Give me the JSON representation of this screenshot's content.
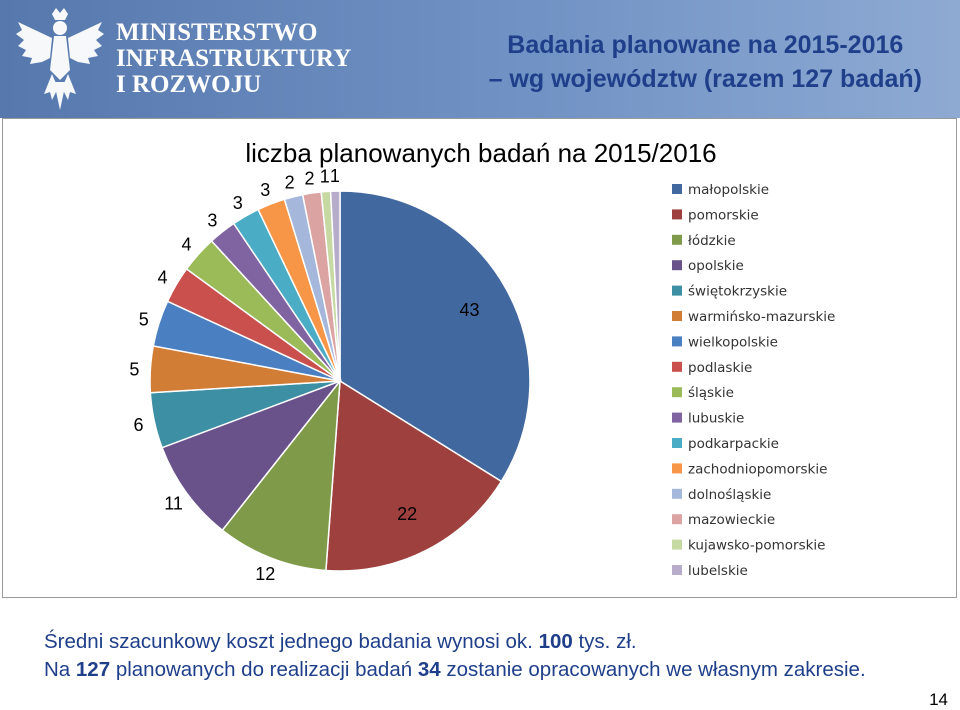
{
  "header": {
    "ministry_lines": [
      "MINISTERSTWO",
      "INFRASTRUKTURY",
      "I ROZWOJU"
    ],
    "title_line1": "Badania planowane na 2015-2016",
    "title_line2": "– wg województw (razem 127 badań)"
  },
  "chart_data": {
    "type": "pie",
    "title": "liczba planowanych badań na 2015/2016",
    "legend_position": "right",
    "categories": [
      "małopolskie",
      "pomorskie",
      "łódzkie",
      "opolskie",
      "świętokrzyskie",
      "warmińsko-mazurskie",
      "wielkopolskie",
      "podlaskie",
      "śląskie",
      "lubuskie",
      "podkarpackie",
      "zachodniopomorskie",
      "dolnośląskie",
      "mazowieckie",
      "kujawsko-pomorskie",
      "lubelskie"
    ],
    "values": [
      43,
      22,
      12,
      11,
      6,
      5,
      5,
      4,
      4,
      3,
      3,
      3,
      2,
      2,
      1,
      1
    ],
    "colors": [
      "#4268a0",
      "#9e413e",
      "#7f9a48",
      "#69518a",
      "#3d8fa3",
      "#d17d35",
      "#4a7fc1",
      "#c9504c",
      "#9bbb59",
      "#8064a2",
      "#4bacc6",
      "#f79646",
      "#a5b8db",
      "#dba4a3",
      "#c6d9a3",
      "#b7acca"
    ]
  },
  "footer": {
    "line1_pre": "Średni szacunkowy koszt jednego badania wynosi ok. ",
    "line1_bold": "100",
    "line1_post": " tys. zł.",
    "line2_a": "Na ",
    "line2_b": "127",
    "line2_c": " planowanych do realizacji badań ",
    "line2_d": "34",
    "line2_e": " zostanie opracowanych we własnym zakresie."
  },
  "page_number": "14"
}
